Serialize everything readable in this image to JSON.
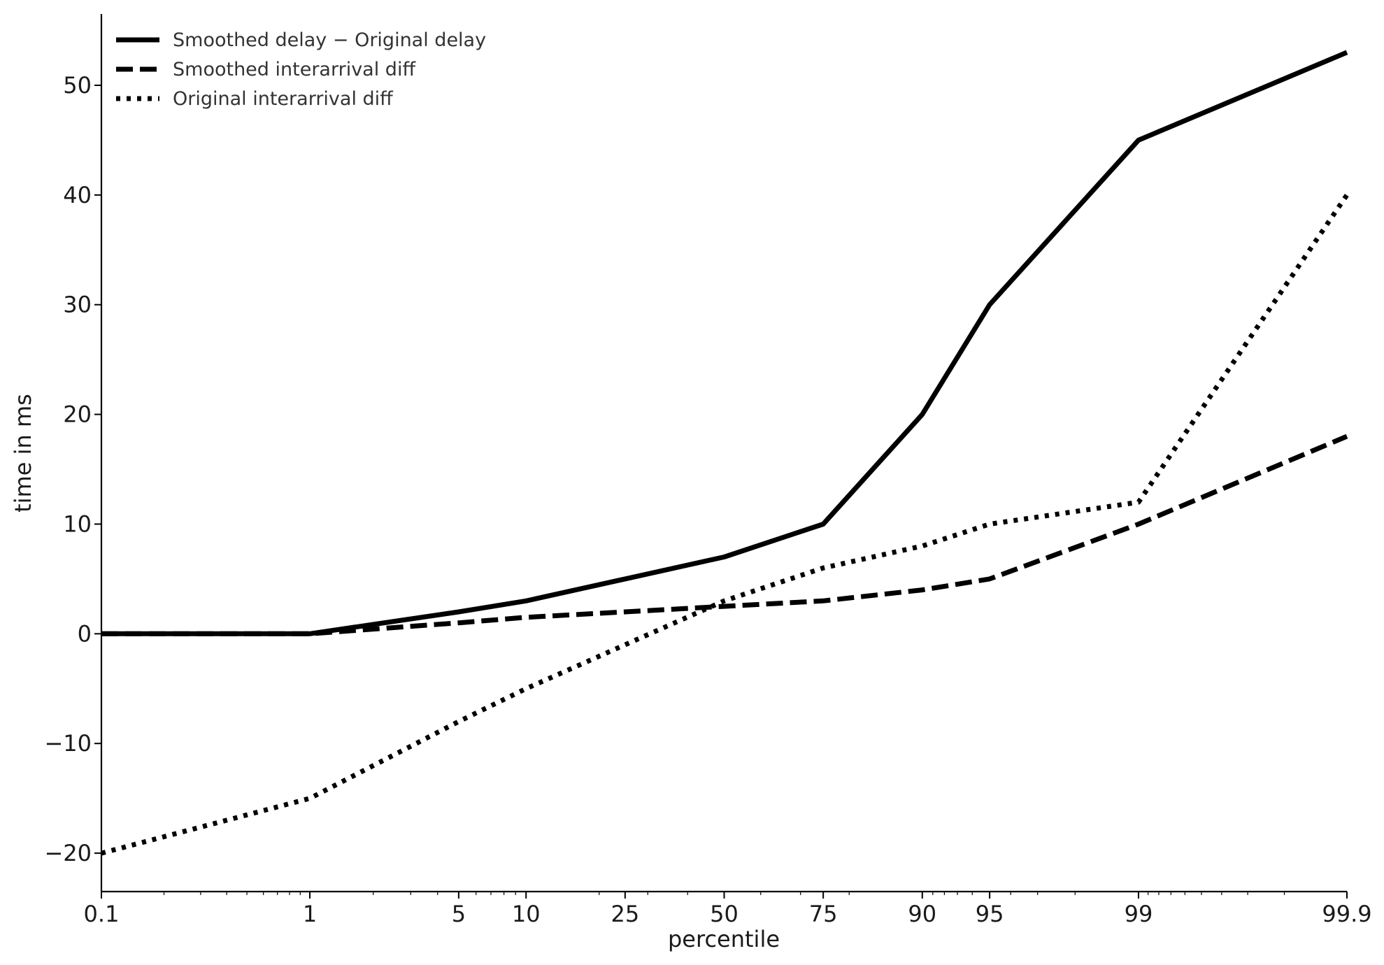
{
  "chart_data": {
    "type": "line",
    "title": "",
    "xlabel": "percentile",
    "ylabel": "time in ms",
    "x_scale": "logit",
    "x": [
      0.1,
      1,
      5,
      10,
      25,
      50,
      75,
      90,
      95,
      99,
      99.9
    ],
    "x_tick_labels": [
      "0.1",
      "1",
      "5",
      "10",
      "25",
      "50",
      "75",
      "90",
      "95",
      "99",
      "99.9"
    ],
    "xlim": [
      0.1,
      99.9
    ],
    "ylim": [
      -23.5,
      56.5
    ],
    "yticks": [
      -20,
      -10,
      0,
      10,
      20,
      30,
      40,
      50
    ],
    "ytick_labels": [
      "−20",
      "−10",
      "0",
      "10",
      "20",
      "30",
      "40",
      "50"
    ],
    "grid": false,
    "legend_position": "top-left",
    "series": [
      {
        "name": "Smoothed delay − Original delay",
        "style": "solid",
        "color": "#000000",
        "values": [
          0,
          0,
          2,
          3,
          5,
          7,
          10,
          20,
          30,
          45,
          53
        ]
      },
      {
        "name": "Smoothed interarrival diff",
        "style": "dashed",
        "color": "#000000",
        "values": [
          0,
          0,
          1,
          1.5,
          2,
          2.5,
          3,
          4,
          5,
          10,
          18
        ]
      },
      {
        "name": "Original interarrival diff",
        "style": "dotted",
        "color": "#000000",
        "values": [
          -20,
          -15,
          -8,
          -5,
          -1,
          3,
          6,
          8,
          10,
          12,
          40
        ]
      }
    ]
  }
}
